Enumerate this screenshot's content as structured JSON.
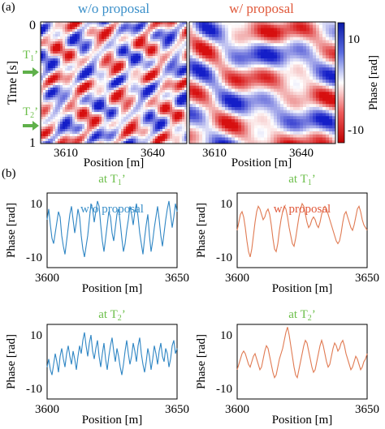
{
  "figure": {
    "panel_a_label": "(a)",
    "panel_b_label": "(b)",
    "marker_t1": "T",
    "marker_t1_sub": "1",
    "marker_t1_prime": "’",
    "marker_t2": "T",
    "marker_t2_sub": "2",
    "marker_t2_prime": "’"
  },
  "colors": {
    "blue_series": "#2f86c4",
    "orange_series": "#e07a52",
    "green_text": "#6cbf4a",
    "title_blue": "#3a8fc9",
    "title_red": "#e0583a",
    "arrow_green": "#5fb04a"
  },
  "chart_data": [
    {
      "type": "heatmap",
      "title": "w/o proposal",
      "xlabel": "Position [m]",
      "ylabel": "Time [s]",
      "xticks": [
        "3610",
        "3640"
      ],
      "yticks": [
        "0",
        "1"
      ],
      "xlim": [
        3600,
        3650
      ],
      "ylim": [
        0,
        1
      ],
      "colormap": "red-white-blue",
      "texture": "fine"
    },
    {
      "type": "heatmap",
      "title": "w/ proposal",
      "xlabel": "Position [m]",
      "xticks": [
        "3610",
        "3640"
      ],
      "xlim": [
        3600,
        3650
      ],
      "ylim": [
        0,
        1
      ],
      "colormap": "red-white-blue",
      "texture": "smooth",
      "colorbar": {
        "label": "Phase [rad]",
        "ticks": [
          "10",
          "-10"
        ],
        "range": [
          -12,
          12
        ]
      }
    },
    {
      "type": "line",
      "subtitle": "at T1’",
      "series_label": "w/o proposal",
      "xlabel": "Position [m]",
      "ylabel": "Phase [rad]",
      "xticks": [
        "3600",
        "3650"
      ],
      "yticks": [
        "10",
        "-10"
      ],
      "xlim": [
        3600,
        3650
      ],
      "ylim": [
        -14,
        14
      ],
      "color": "#2f86c4",
      "x_start": 3600,
      "x_step": 0.625,
      "values": [
        4,
        8,
        2,
        -3,
        -5,
        -1,
        3,
        7,
        5,
        -2,
        -6,
        -9,
        -4,
        1,
        6,
        9,
        4,
        -1,
        3,
        8,
        5,
        -2,
        -7,
        -10,
        -6,
        -2,
        4,
        10,
        8,
        3,
        7,
        11,
        9,
        2,
        -4,
        -8,
        -3,
        2,
        7,
        5,
        -1,
        -4,
        1,
        6,
        8,
        3,
        -3,
        -8,
        -5,
        0,
        4,
        9,
        6,
        2,
        7,
        10,
        5,
        -1,
        -5,
        -9,
        -3,
        2,
        6,
        -2,
        -8,
        -4,
        1,
        5,
        9,
        4,
        -2,
        -6,
        -1,
        4,
        8,
        11,
        6,
        1,
        5,
        10,
        7
      ]
    },
    {
      "type": "line",
      "subtitle": "at T1’",
      "series_label": "w/ proposal",
      "xlabel": "Position [m]",
      "ylabel": "Phase [rad]",
      "xticks": [
        "3600",
        "3650"
      ],
      "yticks": [
        "10",
        "-10"
      ],
      "xlim": [
        3600,
        3650
      ],
      "ylim": [
        -14,
        14
      ],
      "color": "#e07a52",
      "x_start": 3600,
      "x_step": 0.625,
      "values": [
        0,
        3,
        6,
        7,
        5,
        1,
        -4,
        -8,
        -10,
        -7,
        -2,
        3,
        7,
        9,
        8,
        6,
        4,
        5,
        7,
        8,
        6,
        2,
        -3,
        -7,
        -8,
        -5,
        0,
        4,
        7,
        9,
        8,
        5,
        1,
        -2,
        -5,
        -6,
        -3,
        1,
        5,
        8,
        10,
        9,
        6,
        3,
        1,
        2,
        4,
        5,
        4,
        2,
        1,
        3,
        6,
        8,
        9,
        8,
        6,
        4,
        2,
        0,
        -2,
        -4,
        -5,
        -4,
        -1,
        3,
        6,
        7,
        5,
        3,
        1,
        0,
        2,
        5,
        8,
        9,
        7,
        4,
        2,
        1,
        0
      ]
    },
    {
      "type": "line",
      "subtitle": "at T2’",
      "xlabel": "Position [m]",
      "ylabel": "Phase [rad]",
      "xticks": [
        "3600",
        "3650"
      ],
      "yticks": [
        "10",
        "-10"
      ],
      "xlim": [
        3600,
        3650
      ],
      "ylim": [
        -14,
        14
      ],
      "color": "#2f86c4",
      "x_start": 3600,
      "x_step": 0.625,
      "values": [
        -2,
        1,
        -3,
        -5,
        -1,
        3,
        0,
        -4,
        2,
        5,
        1,
        -2,
        3,
        6,
        2,
        -1,
        4,
        1,
        -3,
        2,
        6,
        3,
        8,
        11,
        6,
        2,
        7,
        10,
        4,
        1,
        5,
        8,
        2,
        -2,
        3,
        7,
        1,
        -3,
        2,
        6,
        9,
        4,
        0,
        5,
        2,
        -2,
        -5,
        -1,
        4,
        8,
        3,
        -1,
        2,
        7,
        4,
        0,
        6,
        9,
        3,
        -1,
        -4,
        0,
        5,
        2,
        -3,
        1,
        6,
        3,
        -1,
        4,
        7,
        2,
        0,
        5,
        3,
        -2,
        1,
        6,
        8,
        3,
        5
      ]
    },
    {
      "type": "line",
      "subtitle": "at T2’",
      "xlabel": "Position [m]",
      "ylabel": "Phase [rad]",
      "xticks": [
        "3600",
        "3650"
      ],
      "yticks": [
        "10",
        "-10"
      ],
      "xlim": [
        3600,
        3650
      ],
      "ylim": [
        -14,
        14
      ],
      "color": "#e07a52",
      "x_start": 3600,
      "x_step": 0.625,
      "values": [
        -3,
        -1,
        1,
        3,
        4,
        3,
        1,
        -1,
        -2,
        0,
        2,
        3,
        1,
        -1,
        -3,
        -2,
        1,
        4,
        6,
        5,
        2,
        -1,
        -4,
        -6,
        -5,
        -2,
        1,
        3,
        5,
        8,
        11,
        13,
        10,
        6,
        2,
        -2,
        -5,
        -6,
        -3,
        0,
        3,
        6,
        8,
        7,
        4,
        1,
        -2,
        -4,
        -3,
        0,
        3,
        6,
        8,
        6,
        3,
        0,
        -2,
        -1,
        2,
        5,
        7,
        6,
        4,
        5,
        7,
        8,
        6,
        3,
        1,
        -1,
        -3,
        -2,
        0,
        2,
        1,
        -1,
        -3,
        -2,
        0,
        1,
        3
      ]
    }
  ]
}
